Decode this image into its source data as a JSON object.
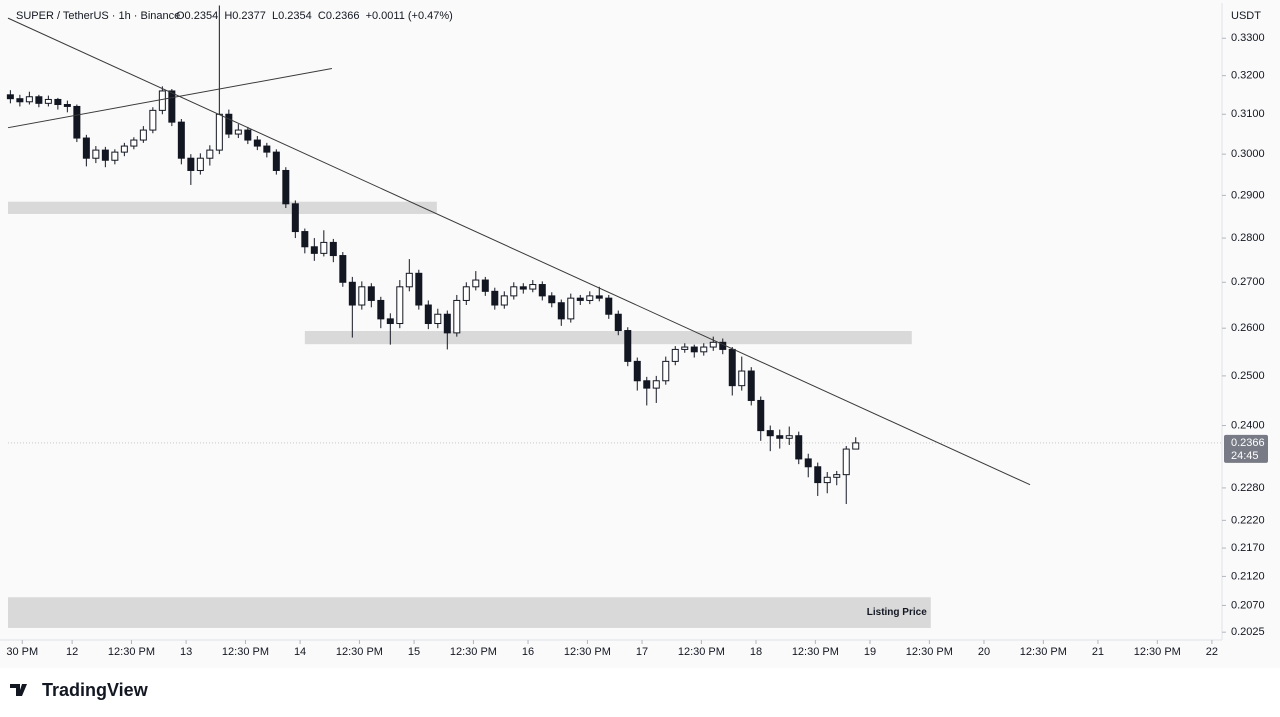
{
  "chart_data": {
    "type": "candlestick",
    "symbol": "SUPER / TetherUS · 1h · Binance",
    "legend": "O0.2354  H0.2377  L0.2354  C0.2366  +0.0011 (+0.47%)",
    "unit": "USDT",
    "log_scale": true,
    "grid": false,
    "colors": {
      "up": "#ffffff",
      "down": "#131722",
      "border": "#131722",
      "zone": "#d9d9d9",
      "trendline": "#3a3a3a"
    },
    "xlim": [
      -13.5,
      241.7
    ],
    "ylim": [
      0.2012,
      0.3397
    ],
    "xticks": [
      {
        "value": -10.5,
        "label": "30 PM"
      },
      {
        "value": 0,
        "label": "12"
      },
      {
        "value": 12.5,
        "label": "12:30 PM"
      },
      {
        "value": 24,
        "label": "13"
      },
      {
        "value": 36.5,
        "label": "12:30 PM"
      },
      {
        "value": 48,
        "label": "14"
      },
      {
        "value": 60.5,
        "label": "12:30 PM"
      },
      {
        "value": 72,
        "label": "15"
      },
      {
        "value": 84.5,
        "label": "12:30 PM"
      },
      {
        "value": 96,
        "label": "16"
      },
      {
        "value": 108.5,
        "label": "12:30 PM"
      },
      {
        "value": 120,
        "label": "17"
      },
      {
        "value": 132.5,
        "label": "12:30 PM"
      },
      {
        "value": 144,
        "label": "18"
      },
      {
        "value": 156.5,
        "label": "12:30 PM"
      },
      {
        "value": 168,
        "label": "19"
      },
      {
        "value": 180.5,
        "label": "12:30 PM"
      },
      {
        "value": 192,
        "label": "20"
      },
      {
        "value": 204.5,
        "label": "12:30 PM"
      },
      {
        "value": 216,
        "label": "21"
      },
      {
        "value": 228.5,
        "label": "12:30 PM"
      },
      {
        "value": 240,
        "label": "22"
      }
    ],
    "yticks": [
      {
        "value": 0.33,
        "label": "0.3300"
      },
      {
        "value": 0.32,
        "label": "0.3200"
      },
      {
        "value": 0.31,
        "label": "0.3100"
      },
      {
        "value": 0.3,
        "label": "0.3000"
      },
      {
        "value": 0.29,
        "label": "0.2900"
      },
      {
        "value": 0.28,
        "label": "0.2800"
      },
      {
        "value": 0.27,
        "label": "0.2700"
      },
      {
        "value": 0.26,
        "label": "0.2600"
      },
      {
        "value": 0.25,
        "label": "0.2500"
      },
      {
        "value": 0.24,
        "label": "0.2400"
      },
      {
        "value": 0.228,
        "label": "0.2280"
      },
      {
        "value": 0.222,
        "label": "0.2220"
      },
      {
        "value": 0.217,
        "label": "0.2170"
      },
      {
        "value": 0.212,
        "label": "0.2120"
      },
      {
        "value": 0.207,
        "label": "0.2070"
      },
      {
        "value": 0.2025,
        "label": "0.2025"
      }
    ],
    "last_price": {
      "value": 0.2366,
      "label": "0.2366"
    },
    "countdown": "24:45",
    "candles": [
      [
        -13,
        0.315,
        0.3162,
        0.3128,
        0.314
      ],
      [
        -11,
        0.314,
        0.315,
        0.312,
        0.3132
      ],
      [
        -9,
        0.3132,
        0.3158,
        0.3125,
        0.3145
      ],
      [
        -7,
        0.3145,
        0.315,
        0.3118,
        0.3128
      ],
      [
        -5,
        0.3128,
        0.3148,
        0.312,
        0.3138
      ],
      [
        -3,
        0.3138,
        0.3142,
        0.3112,
        0.3125
      ],
      [
        -1,
        0.3125,
        0.3135,
        0.3105,
        0.312
      ],
      [
        1,
        0.312,
        0.3125,
        0.303,
        0.304
      ],
      [
        3,
        0.304,
        0.3048,
        0.297,
        0.299
      ],
      [
        5,
        0.299,
        0.302,
        0.2978,
        0.301
      ],
      [
        7,
        0.301,
        0.3018,
        0.2968,
        0.2985
      ],
      [
        9,
        0.2985,
        0.3012,
        0.2975,
        0.3005
      ],
      [
        11,
        0.3005,
        0.3028,
        0.2995,
        0.302
      ],
      [
        13,
        0.302,
        0.3042,
        0.3012,
        0.3035
      ],
      [
        15,
        0.3035,
        0.307,
        0.3028,
        0.306
      ],
      [
        17,
        0.306,
        0.3118,
        0.3052,
        0.311
      ],
      [
        19,
        0.311,
        0.3172,
        0.31,
        0.316
      ],
      [
        21,
        0.316,
        0.3165,
        0.307,
        0.308
      ],
      [
        23,
        0.308,
        0.3088,
        0.2975,
        0.299
      ],
      [
        25,
        0.299,
        0.3,
        0.2925,
        0.296
      ],
      [
        27,
        0.296,
        0.3002,
        0.295,
        0.299
      ],
      [
        29,
        0.299,
        0.3022,
        0.2972,
        0.301
      ],
      [
        31,
        0.301,
        0.339,
        0.3,
        0.31
      ],
      [
        33,
        0.31,
        0.3112,
        0.304,
        0.305
      ],
      [
        35,
        0.305,
        0.3075,
        0.304,
        0.306
      ],
      [
        37,
        0.306,
        0.3068,
        0.3025,
        0.3035
      ],
      [
        39,
        0.3035,
        0.3045,
        0.301,
        0.302
      ],
      [
        41,
        0.302,
        0.3028,
        0.2992,
        0.3005
      ],
      [
        43,
        0.3005,
        0.3012,
        0.295,
        0.296
      ],
      [
        45,
        0.296,
        0.2968,
        0.287,
        0.288
      ],
      [
        47,
        0.288,
        0.2888,
        0.28,
        0.2815
      ],
      [
        49,
        0.2815,
        0.2822,
        0.2765,
        0.278
      ],
      [
        51,
        0.278,
        0.28,
        0.2748,
        0.2765
      ],
      [
        53,
        0.2765,
        0.2818,
        0.2758,
        0.279
      ],
      [
        55,
        0.279,
        0.2798,
        0.2745,
        0.276
      ],
      [
        57,
        0.276,
        0.2768,
        0.269,
        0.27
      ],
      [
        59,
        0.27,
        0.2712,
        0.258,
        0.265
      ],
      [
        61,
        0.265,
        0.2702,
        0.264,
        0.269
      ],
      [
        63,
        0.269,
        0.2698,
        0.2645,
        0.266
      ],
      [
        65,
        0.266,
        0.2668,
        0.26,
        0.262
      ],
      [
        67,
        0.262,
        0.2632,
        0.2565,
        0.261
      ],
      [
        69,
        0.261,
        0.2705,
        0.26,
        0.269
      ],
      [
        71,
        0.269,
        0.2752,
        0.268,
        0.272
      ],
      [
        73,
        0.272,
        0.2728,
        0.264,
        0.265
      ],
      [
        75,
        0.265,
        0.266,
        0.2598,
        0.261
      ],
      [
        77,
        0.261,
        0.2642,
        0.26,
        0.263
      ],
      [
        79,
        0.263,
        0.2638,
        0.2555,
        0.259
      ],
      [
        81,
        0.259,
        0.2672,
        0.2582,
        0.266
      ],
      [
        83,
        0.266,
        0.27,
        0.265,
        0.269
      ],
      [
        85,
        0.269,
        0.2725,
        0.2682,
        0.2705
      ],
      [
        87,
        0.2705,
        0.2712,
        0.267,
        0.268
      ],
      [
        89,
        0.268,
        0.2688,
        0.264,
        0.265
      ],
      [
        91,
        0.265,
        0.268,
        0.2642,
        0.267
      ],
      [
        93,
        0.267,
        0.27,
        0.2662,
        0.269
      ],
      [
        95,
        0.269,
        0.2698,
        0.2675,
        0.2685
      ],
      [
        97,
        0.2685,
        0.2705,
        0.2678,
        0.2695
      ],
      [
        99,
        0.2695,
        0.2702,
        0.266,
        0.267
      ],
      [
        101,
        0.267,
        0.2678,
        0.2645,
        0.2655
      ],
      [
        103,
        0.2655,
        0.2662,
        0.2605,
        0.262
      ],
      [
        105,
        0.262,
        0.2675,
        0.2612,
        0.2665
      ],
      [
        107,
        0.2665,
        0.2672,
        0.265,
        0.266
      ],
      [
        109,
        0.266,
        0.268,
        0.2652,
        0.267
      ],
      [
        111,
        0.267,
        0.269,
        0.2658,
        0.2665
      ],
      [
        113,
        0.2665,
        0.2672,
        0.262,
        0.263
      ],
      [
        115,
        0.263,
        0.2638,
        0.2585,
        0.2595
      ],
      [
        117,
        0.2595,
        0.2602,
        0.252,
        0.253
      ],
      [
        119,
        0.253,
        0.2538,
        0.247,
        0.249
      ],
      [
        121,
        0.249,
        0.2498,
        0.244,
        0.2475
      ],
      [
        123,
        0.2475,
        0.25,
        0.2445,
        0.249
      ],
      [
        125,
        0.249,
        0.254,
        0.2482,
        0.253
      ],
      [
        127,
        0.253,
        0.2562,
        0.2522,
        0.2555
      ],
      [
        129,
        0.2555,
        0.2568,
        0.2548,
        0.256
      ],
      [
        131,
        0.256,
        0.2565,
        0.2538,
        0.255
      ],
      [
        133,
        0.255,
        0.2568,
        0.2542,
        0.256
      ],
      [
        135,
        0.256,
        0.2582,
        0.2552,
        0.257
      ],
      [
        137,
        0.257,
        0.2578,
        0.2545,
        0.2555
      ],
      [
        139,
        0.2555,
        0.256,
        0.246,
        0.248
      ],
      [
        141,
        0.248,
        0.254,
        0.247,
        0.251
      ],
      [
        143,
        0.251,
        0.2518,
        0.244,
        0.245
      ],
      [
        145,
        0.245,
        0.2458,
        0.237,
        0.239
      ],
      [
        147,
        0.239,
        0.24,
        0.235,
        0.238
      ],
      [
        149,
        0.238,
        0.2392,
        0.2355,
        0.2375
      ],
      [
        151,
        0.2375,
        0.2398,
        0.2362,
        0.238
      ],
      [
        153,
        0.238,
        0.2388,
        0.2325,
        0.2335
      ],
      [
        155,
        0.2335,
        0.2345,
        0.23,
        0.232
      ],
      [
        157,
        0.232,
        0.2328,
        0.2265,
        0.229
      ],
      [
        159,
        0.229,
        0.231,
        0.227,
        0.23
      ],
      [
        161,
        0.23,
        0.2312,
        0.2285,
        0.2305
      ],
      [
        163,
        0.2305,
        0.236,
        0.225,
        0.2354
      ],
      [
        165,
        0.2354,
        0.2377,
        0.2354,
        0.2366
      ]
    ],
    "zones": [
      {
        "x": [
          -13.5,
          76.8
        ],
        "y": [
          0.2856,
          0.2885
        ]
      },
      {
        "x": [
          49,
          176.8
        ],
        "y": [
          0.2566,
          0.2594
        ]
      },
      {
        "x": [
          -13.5,
          180.8
        ],
        "y": [
          0.2032,
          0.2084
        ],
        "label": "Listing Price"
      }
    ],
    "trendlines": [
      {
        "x": [
          -13.5,
          201.7
        ],
        "y": [
          0.3355,
          0.2286
        ]
      },
      {
        "x": [
          -13.5,
          54.7
        ],
        "y": [
          0.3066,
          0.3219
        ]
      }
    ],
    "brand": "TradingView"
  }
}
